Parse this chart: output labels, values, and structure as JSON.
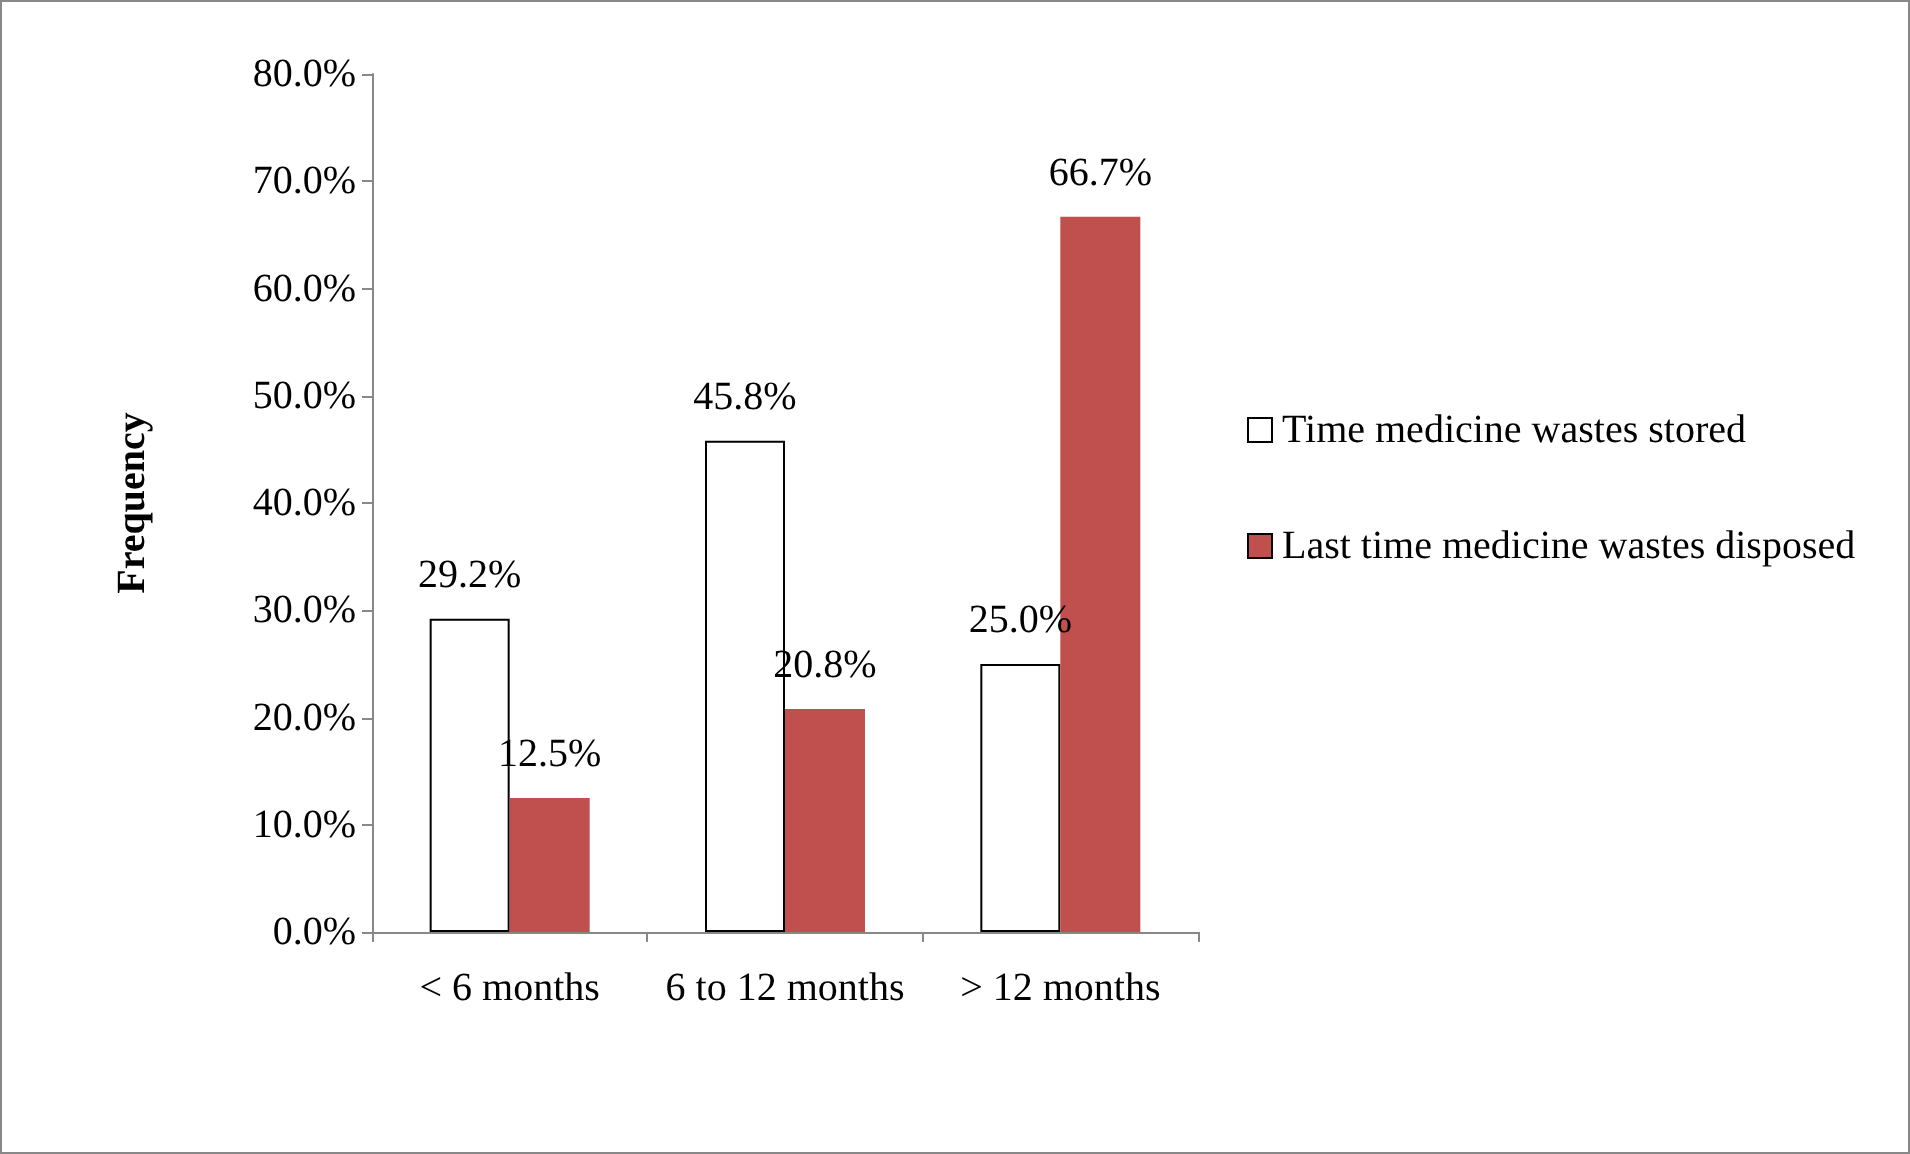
{
  "chart_data": {
    "type": "bar",
    "ylabel": "Frequency",
    "categories": [
      "< 6 months",
      "6 to 12 months",
      "> 12 months"
    ],
    "series": [
      {
        "name": "Time medicine wastes stored",
        "color": "#ffffff",
        "values": [
          29.2,
          45.8,
          25.0
        ],
        "value_labels": [
          "29.2%",
          "45.8%",
          "25.0%"
        ]
      },
      {
        "name": "Last time medicine wastes disposed",
        "color": "#c0504d",
        "values": [
          12.5,
          20.8,
          66.7
        ],
        "value_labels": [
          "12.5%",
          "20.8%",
          "66.7%"
        ]
      }
    ],
    "ylim": [
      0,
      80
    ],
    "yticks": [
      {
        "value": 0,
        "label": "0.0%"
      },
      {
        "value": 10,
        "label": "10.0%"
      },
      {
        "value": 20,
        "label": "20.0%"
      },
      {
        "value": 30,
        "label": "30.0%"
      },
      {
        "value": 40,
        "label": "40.0%"
      },
      {
        "value": 50,
        "label": "50.0%"
      },
      {
        "value": 60,
        "label": "60.0%"
      },
      {
        "value": 70,
        "label": "70.0%"
      },
      {
        "value": 80,
        "label": "80.0%"
      }
    ],
    "grid": false,
    "legend": "right"
  }
}
